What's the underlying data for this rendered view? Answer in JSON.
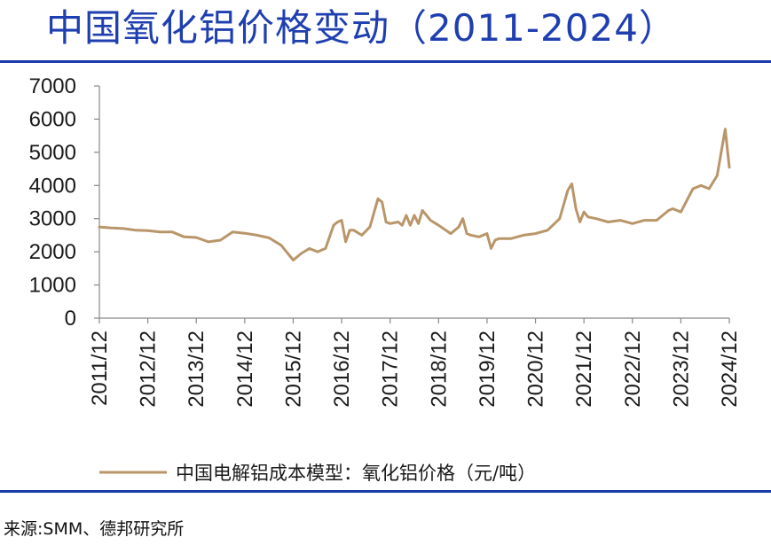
{
  "header": {
    "title": "中国氧化铝价格变动（2011-2024）"
  },
  "footer": {
    "source": "来源:SMM、德邦研究所"
  },
  "chart_data": {
    "type": "line",
    "title": "",
    "xlabel": "",
    "ylabel": "",
    "ylim": [
      0,
      7000
    ],
    "yticks": [
      "0",
      "1000",
      "2000",
      "3000",
      "4000",
      "5000",
      "6000",
      "7000"
    ],
    "x_tick_labels": [
      "2011/12",
      "2012/12",
      "2013/12",
      "2014/12",
      "2015/12",
      "2016/12",
      "2017/12",
      "2018/12",
      "2019/12",
      "2020/12",
      "2021/12",
      "2022/12",
      "2023/12",
      "2024/12"
    ],
    "grid": false,
    "legend_position": "bottom",
    "series": [
      {
        "name": "中国电解铝成本模型：氧化铝价格（元/吨）",
        "color": "#b9966a",
        "x": [
          "2011-12",
          "2012-03",
          "2012-06",
          "2012-09",
          "2012-12",
          "2013-03",
          "2013-06",
          "2013-09",
          "2013-12",
          "2014-03",
          "2014-06",
          "2014-09",
          "2014-12",
          "2015-03",
          "2015-06",
          "2015-09",
          "2015-10",
          "2015-12",
          "2016-02",
          "2016-04",
          "2016-06",
          "2016-08",
          "2016-10",
          "2016-11",
          "2016-12",
          "2017-01",
          "2017-02",
          "2017-03",
          "2017-05",
          "2017-07",
          "2017-09",
          "2017-10",
          "2017-11",
          "2017-12",
          "2018-02",
          "2018-03",
          "2018-04",
          "2018-05",
          "2018-06",
          "2018-07",
          "2018-08",
          "2018-09",
          "2018-10",
          "2018-12",
          "2019-03",
          "2019-05",
          "2019-06",
          "2019-07",
          "2019-08",
          "2019-10",
          "2019-12",
          "2020-01",
          "2020-02",
          "2020-03",
          "2020-06",
          "2020-09",
          "2020-12",
          "2021-03",
          "2021-06",
          "2021-08",
          "2021-09",
          "2021-10",
          "2021-11",
          "2021-12",
          "2022-01",
          "2022-03",
          "2022-06",
          "2022-09",
          "2022-12",
          "2023-03",
          "2023-06",
          "2023-09",
          "2023-10",
          "2023-11",
          "2023-12",
          "2024-03",
          "2024-05",
          "2024-07",
          "2024-09",
          "2024-11",
          "2024-12"
        ],
        "values": [
          2750,
          2720,
          2700,
          2650,
          2640,
          2600,
          2600,
          2450,
          2430,
          2300,
          2350,
          2600,
          2560,
          2500,
          2420,
          2200,
          2050,
          1750,
          1950,
          2100,
          2000,
          2100,
          2800,
          2900,
          2950,
          2300,
          2650,
          2650,
          2500,
          2750,
          3600,
          3500,
          2900,
          2850,
          2900,
          2800,
          3100,
          2800,
          3100,
          2850,
          3250,
          3100,
          2950,
          2800,
          2550,
          2750,
          3000,
          2550,
          2500,
          2450,
          2550,
          2100,
          2350,
          2400,
          2400,
          2500,
          2550,
          2650,
          3000,
          3850,
          4050,
          3300,
          2900,
          3200,
          3050,
          3000,
          2900,
          2950,
          2850,
          2950,
          2950,
          3250,
          3300,
          3250,
          3200,
          3900,
          4000,
          3900,
          4300,
          5700,
          4550
        ]
      }
    ]
  }
}
